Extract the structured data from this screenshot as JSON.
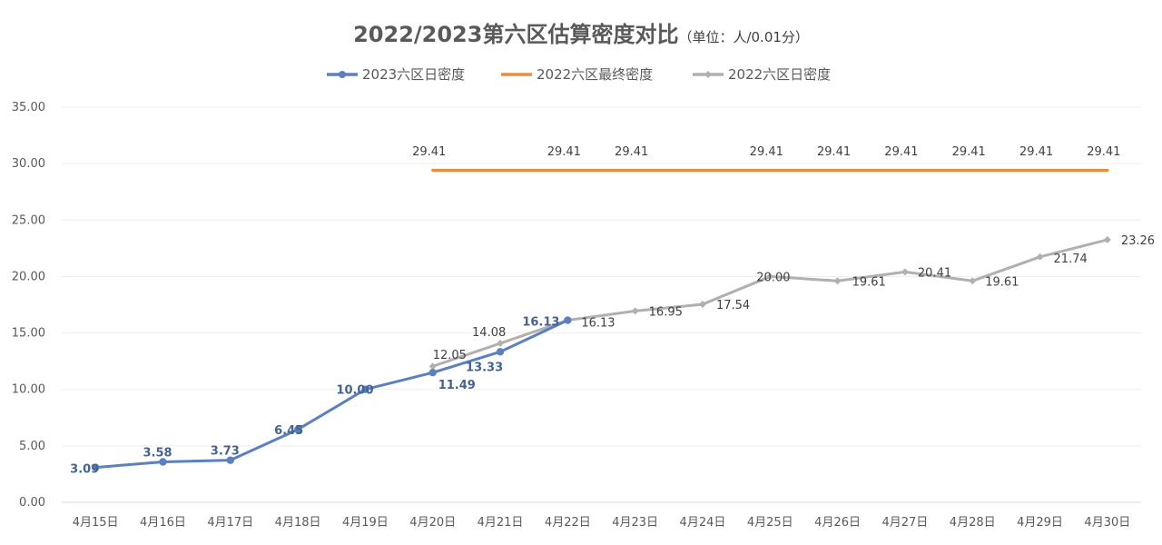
{
  "title": {
    "main": "2022/2023第六区估算密度对比",
    "unit": "（单位：人/0.01分）"
  },
  "chart_data": {
    "type": "line",
    "categories": [
      "4月15日",
      "4月16日",
      "4月17日",
      "4月18日",
      "4月19日",
      "4月20日",
      "4月21日",
      "4月22日",
      "4月23日",
      "4月24日",
      "4月25日",
      "4月26日",
      "4月27日",
      "4月28日",
      "4月29日",
      "4月30日"
    ],
    "ylim": [
      0,
      35
    ],
    "yticks": [
      0,
      5,
      10,
      15,
      20,
      25,
      30,
      35
    ],
    "ytick_labels": [
      "0.00",
      "5.00",
      "10.00",
      "15.00",
      "20.00",
      "25.00",
      "30.00",
      "35.00"
    ],
    "grid": true,
    "legend_position": "top",
    "series": [
      {
        "name": "2023六区日密度",
        "color": "#5b7fbf",
        "marker": "circle",
        "values": [
          3.09,
          3.58,
          3.73,
          6.45,
          10.0,
          11.49,
          13.33,
          16.13,
          null,
          null,
          null,
          null,
          null,
          null,
          null,
          null
        ],
        "labels": [
          "3.09",
          "3.58",
          "3.73",
          "6.45",
          "10.00",
          "11.49",
          "13.33",
          "16.13",
          "",
          "",
          "",
          "",
          "",
          "",
          "",
          ""
        ]
      },
      {
        "name": "2022六区最终密度",
        "color": "#ed8b3a",
        "marker": "none",
        "values": [
          null,
          null,
          null,
          null,
          null,
          29.41,
          29.41,
          29.41,
          29.41,
          29.41,
          29.41,
          29.41,
          29.41,
          29.41,
          29.41,
          29.41
        ],
        "labels": [
          "",
          "",
          "",
          "",
          "",
          "29.41",
          "",
          "29.41",
          "29.41",
          "",
          "29.41",
          "29.41",
          "29.41",
          "29.41",
          "29.41",
          "29.41"
        ]
      },
      {
        "name": "2022六区日密度",
        "color": "#b0b0b0",
        "marker": "diamond",
        "values": [
          null,
          null,
          null,
          null,
          null,
          12.05,
          14.08,
          16.13,
          16.95,
          17.54,
          20.0,
          19.61,
          20.41,
          19.61,
          21.74,
          23.26
        ],
        "labels": [
          "",
          "",
          "",
          "",
          "",
          "12.05",
          "14.08",
          "16.13",
          "16.95",
          "17.54",
          "20.00",
          "19.61",
          "20.41",
          "19.61",
          "21.74",
          "23.26"
        ]
      }
    ]
  }
}
